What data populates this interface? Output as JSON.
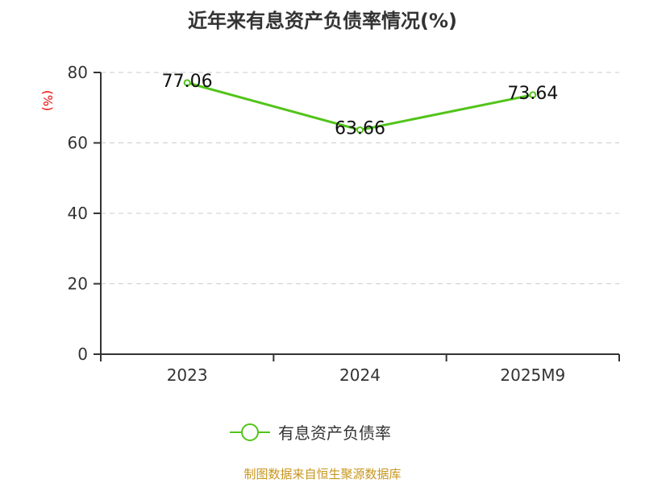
{
  "chart_data": {
    "type": "line",
    "title": "近年来有息资产负债率情况(%)",
    "ylabel": "(%)",
    "categories": [
      "2023",
      "2024",
      "2025M9"
    ],
    "series": [
      {
        "name": "有息资产负债率",
        "values": [
          77.06,
          63.66,
          73.64
        ],
        "color": "#52c41a"
      }
    ],
    "data_labels": [
      "77.06",
      "63.66",
      "73.64"
    ],
    "ylim": [
      0,
      80
    ],
    "yticks": [
      0,
      20,
      40,
      60,
      80
    ],
    "grid": true,
    "legend": "bottom"
  },
  "footer": "制图数据来自恒生聚源数据库"
}
